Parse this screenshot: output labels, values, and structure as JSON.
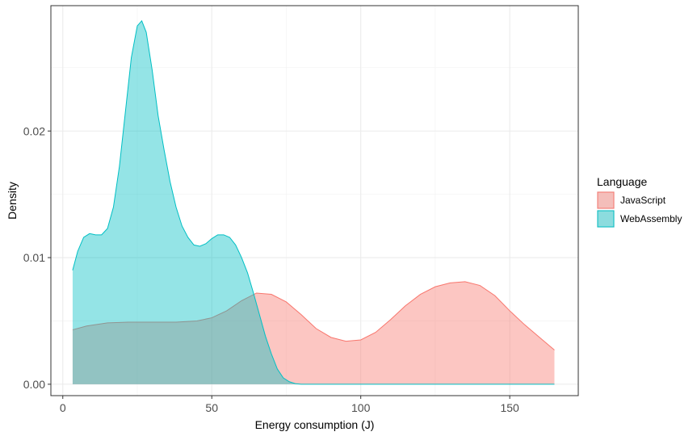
{
  "chart_data": {
    "type": "area",
    "title": "",
    "xlabel": "Energy consumption (J)",
    "ylabel": "Density",
    "xlim": [
      -4,
      173
    ],
    "ylim": [
      -0.0009,
      0.0299
    ],
    "x_ticks": [
      0,
      50,
      100,
      150
    ],
    "y_ticks": [
      0.0,
      0.01,
      0.02
    ],
    "y_tick_labels": [
      "0.00",
      "0.01",
      "0.02"
    ],
    "grid": true,
    "legend": {
      "title": "Language",
      "position": "right"
    },
    "series": [
      {
        "name": "JavaScript",
        "fill": "#F8766D",
        "points": [
          [
            3.3,
            0.0043
          ],
          [
            8,
            0.0046
          ],
          [
            15,
            0.00485
          ],
          [
            22,
            0.0049
          ],
          [
            30,
            0.0049
          ],
          [
            38,
            0.0049
          ],
          [
            45,
            0.005
          ],
          [
            50,
            0.00525
          ],
          [
            55,
            0.0058
          ],
          [
            60,
            0.0066
          ],
          [
            65,
            0.0072
          ],
          [
            70,
            0.0071
          ],
          [
            75,
            0.0065
          ],
          [
            80,
            0.0055
          ],
          [
            85,
            0.0044
          ],
          [
            90,
            0.0037
          ],
          [
            95,
            0.0034
          ],
          [
            100,
            0.0035
          ],
          [
            105,
            0.0041
          ],
          [
            110,
            0.0051
          ],
          [
            115,
            0.0062
          ],
          [
            120,
            0.0071
          ],
          [
            125,
            0.0077
          ],
          [
            130,
            0.008
          ],
          [
            135,
            0.0081
          ],
          [
            140,
            0.0078
          ],
          [
            145,
            0.007
          ],
          [
            150,
            0.0058
          ],
          [
            155,
            0.0047
          ],
          [
            160,
            0.0037
          ],
          [
            165,
            0.0027
          ]
        ]
      },
      {
        "name": "WebAssembly",
        "fill": "#00BFC4",
        "points": [
          [
            3.3,
            0.009
          ],
          [
            5,
            0.0105
          ],
          [
            7,
            0.0116
          ],
          [
            9,
            0.0119
          ],
          [
            11,
            0.0118
          ],
          [
            13,
            0.0118
          ],
          [
            15,
            0.0123
          ],
          [
            17,
            0.014
          ],
          [
            19,
            0.0172
          ],
          [
            21,
            0.0215
          ],
          [
            23,
            0.0258
          ],
          [
            25,
            0.0283
          ],
          [
            26.5,
            0.0287
          ],
          [
            28,
            0.0278
          ],
          [
            30,
            0.0248
          ],
          [
            32,
            0.0212
          ],
          [
            34,
            0.0185
          ],
          [
            36,
            0.016
          ],
          [
            38,
            0.014
          ],
          [
            40,
            0.0125
          ],
          [
            42,
            0.0116
          ],
          [
            44,
            0.011
          ],
          [
            46,
            0.0109
          ],
          [
            48,
            0.0111
          ],
          [
            50,
            0.0115
          ],
          [
            52,
            0.0118
          ],
          [
            54,
            0.0118
          ],
          [
            56,
            0.0116
          ],
          [
            58,
            0.011
          ],
          [
            60,
            0.01
          ],
          [
            62,
            0.0088
          ],
          [
            64,
            0.0072
          ],
          [
            66,
            0.0055
          ],
          [
            68,
            0.0038
          ],
          [
            70,
            0.0024
          ],
          [
            72,
            0.0012
          ],
          [
            74,
            0.0005
          ],
          [
            76,
            0.0002
          ],
          [
            78,
            5e-05
          ],
          [
            80,
            0.0
          ],
          [
            100,
            0.0
          ],
          [
            130,
            0.0
          ],
          [
            165,
            0.0
          ]
        ]
      }
    ]
  }
}
